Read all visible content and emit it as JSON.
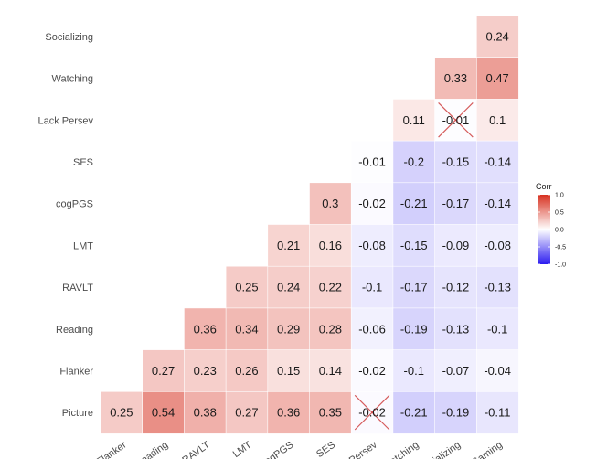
{
  "chart_data": {
    "type": "heatmap",
    "title": "",
    "row_labels": [
      "Socializing",
      "Watching",
      "Lack Persev",
      "SES",
      "cogPGS",
      "LMT",
      "RAVLT",
      "Reading",
      "Flanker",
      "Picture"
    ],
    "col_labels": [
      "Flanker",
      "Reading",
      "RAVLT",
      "LMT",
      "cogPGS",
      "SES",
      "Lack Persev",
      "Watching",
      "Socializing",
      "Gaming"
    ],
    "values": [
      [
        null,
        null,
        null,
        null,
        null,
        null,
        null,
        null,
        null,
        0.24
      ],
      [
        null,
        null,
        null,
        null,
        null,
        null,
        null,
        null,
        0.33,
        0.47
      ],
      [
        null,
        null,
        null,
        null,
        null,
        null,
        null,
        0.11,
        -0.01,
        0.1
      ],
      [
        null,
        null,
        null,
        null,
        null,
        null,
        -0.01,
        -0.2,
        -0.15,
        -0.14
      ],
      [
        null,
        null,
        null,
        null,
        null,
        0.3,
        -0.02,
        -0.21,
        -0.17,
        -0.14
      ],
      [
        null,
        null,
        null,
        null,
        0.21,
        0.16,
        -0.08,
        -0.15,
        -0.09,
        -0.08
      ],
      [
        null,
        null,
        null,
        0.25,
        0.24,
        0.22,
        -0.1,
        -0.17,
        -0.12,
        -0.13
      ],
      [
        null,
        null,
        0.36,
        0.34,
        0.29,
        0.28,
        -0.06,
        -0.19,
        -0.13,
        -0.1
      ],
      [
        null,
        0.27,
        0.23,
        0.26,
        0.15,
        0.14,
        -0.02,
        -0.1,
        -0.07,
        -0.04
      ],
      [
        0.25,
        0.54,
        0.38,
        0.27,
        0.36,
        0.35,
        -0.02,
        -0.21,
        -0.19,
        -0.11
      ]
    ],
    "crossed_out": [
      [
        2,
        8
      ],
      [
        9,
        6
      ]
    ],
    "legend": {
      "title": "Corr",
      "ticks": [
        1.0,
        0.5,
        0.0,
        -0.5,
        -1.0
      ],
      "tick_labels": [
        "1.0",
        "0.5",
        "0.0",
        "-0.5",
        "-1.0"
      ],
      "placement": "right"
    },
    "colors": {
      "high": "#d7301f",
      "mid": "#ffffff",
      "low": "#2b1bf0",
      "cross": "#cc3333"
    },
    "value_range": [
      -1,
      1
    ]
  }
}
